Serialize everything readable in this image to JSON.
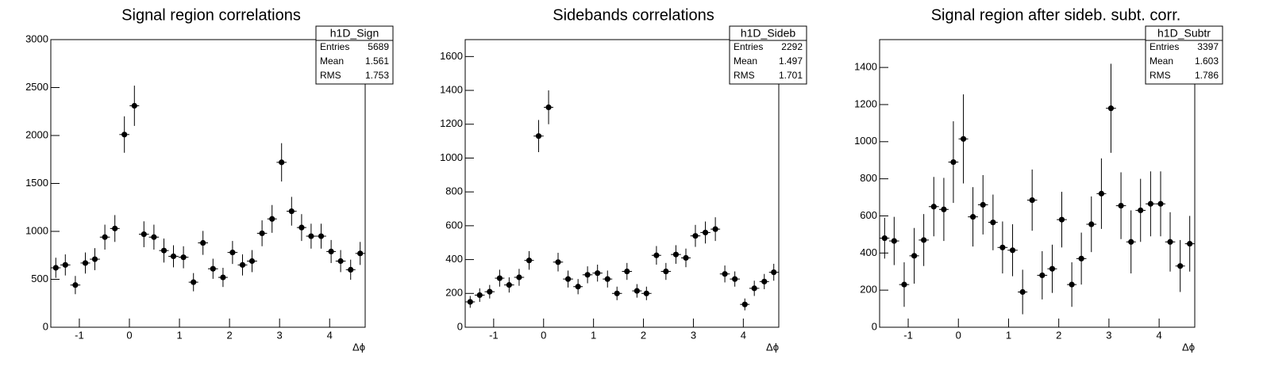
{
  "chart_data": [
    {
      "type": "errorbar",
      "title": "Signal region correlations",
      "x_label": "Δϕ",
      "x": [
        -1.47,
        -1.28,
        -1.08,
        -0.88,
        -0.69,
        -0.49,
        -0.29,
        -0.1,
        0.1,
        0.29,
        0.49,
        0.69,
        0.88,
        1.08,
        1.28,
        1.47,
        1.67,
        1.87,
        2.06,
        2.26,
        2.45,
        2.65,
        2.85,
        3.04,
        3.24,
        3.44,
        3.63,
        3.83,
        4.03,
        4.22,
        4.42,
        4.61
      ],
      "values": [
        620,
        650,
        440,
        670,
        710,
        940,
        1030,
        2010,
        2310,
        970,
        940,
        800,
        740,
        730,
        470,
        880,
        610,
        520,
        780,
        650,
        690,
        980,
        1130,
        1720,
        1210,
        1040,
        950,
        950,
        790,
        690,
        600,
        770
      ],
      "errors": [
        105,
        110,
        95,
        110,
        115,
        130,
        140,
        190,
        210,
        135,
        130,
        125,
        115,
        115,
        95,
        125,
        105,
        100,
        120,
        110,
        115,
        135,
        145,
        200,
        150,
        140,
        130,
        130,
        120,
        115,
        105,
        120
      ],
      "color": "#000000",
      "xlim": [
        -1.57,
        4.71
      ],
      "ylim": [
        0,
        3000
      ],
      "xticks": [
        -1,
        0,
        1,
        2,
        3,
        4
      ],
      "yticks": [
        0,
        500,
        1000,
        1500,
        2000,
        2500,
        3000
      ],
      "stats": {
        "title": "h1D_Sign",
        "rows": [
          {
            "label": "Entries",
            "value": 5689
          },
          {
            "label": "Mean",
            "value": 1.561
          },
          {
            "label": "RMS",
            "value": 1.753
          }
        ]
      }
    },
    {
      "type": "errorbar",
      "title": "Sidebands correlations",
      "x_label": "Δϕ",
      "x": [
        -1.47,
        -1.28,
        -1.08,
        -0.88,
        -0.69,
        -0.49,
        -0.29,
        -0.1,
        0.1,
        0.29,
        0.49,
        0.69,
        0.88,
        1.08,
        1.28,
        1.47,
        1.67,
        1.87,
        2.06,
        2.26,
        2.45,
        2.65,
        2.85,
        3.04,
        3.24,
        3.44,
        3.63,
        3.83,
        4.03,
        4.22,
        4.42,
        4.61
      ],
      "values": [
        150,
        190,
        210,
        290,
        250,
        295,
        395,
        1130,
        1300,
        385,
        285,
        240,
        310,
        320,
        285,
        200,
        330,
        215,
        200,
        425,
        330,
        430,
        410,
        540,
        560,
        580,
        315,
        285,
        135,
        230,
        270,
        325
      ],
      "errors": [
        35,
        40,
        40,
        50,
        45,
        50,
        55,
        95,
        100,
        55,
        50,
        45,
        50,
        50,
        50,
        40,
        50,
        40,
        40,
        55,
        50,
        55,
        55,
        65,
        65,
        70,
        50,
        45,
        35,
        45,
        45,
        50
      ],
      "color": "#000000",
      "xlim": [
        -1.57,
        4.71
      ],
      "ylim": [
        0,
        1700
      ],
      "xticks": [
        -1,
        0,
        1,
        2,
        3,
        4
      ],
      "yticks": [
        0,
        200,
        400,
        600,
        800,
        1000,
        1200,
        1400,
        1600
      ],
      "stats": {
        "title": "h1D_Sideb",
        "rows": [
          {
            "label": "Entries",
            "value": 2292
          },
          {
            "label": "Mean",
            "value": 1.497
          },
          {
            "label": "RMS",
            "value": 1.701
          }
        ]
      }
    },
    {
      "type": "errorbar",
      "title": "Signal region after sideb. subt. corr.",
      "x_label": "Δϕ",
      "x": [
        -1.47,
        -1.28,
        -1.08,
        -0.88,
        -0.69,
        -0.49,
        -0.29,
        -0.1,
        0.1,
        0.29,
        0.49,
        0.69,
        0.88,
        1.08,
        1.28,
        1.47,
        1.67,
        1.87,
        2.06,
        2.26,
        2.45,
        2.65,
        2.85,
        3.04,
        3.24,
        3.44,
        3.63,
        3.83,
        4.03,
        4.22,
        4.42,
        4.61
      ],
      "values": [
        480,
        465,
        230,
        385,
        470,
        650,
        635,
        890,
        1015,
        595,
        660,
        565,
        430,
        415,
        190,
        685,
        280,
        315,
        580,
        230,
        370,
        555,
        720,
        1180,
        655,
        460,
        630,
        665,
        665,
        460,
        330,
        450
      ],
      "errors": [
        110,
        130,
        120,
        150,
        140,
        160,
        170,
        220,
        240,
        160,
        160,
        150,
        140,
        140,
        120,
        165,
        130,
        130,
        150,
        120,
        140,
        150,
        190,
        240,
        180,
        170,
        170,
        175,
        175,
        160,
        140,
        150
      ],
      "color": "#000000",
      "xlim": [
        -1.57,
        4.71
      ],
      "ylim": [
        0,
        1550
      ],
      "xticks": [
        -1,
        0,
        1,
        2,
        3,
        4
      ],
      "yticks": [
        0,
        200,
        400,
        600,
        800,
        1000,
        1200,
        1400
      ],
      "stats": {
        "title": "h1D_Subtr",
        "rows": [
          {
            "label": "Entries",
            "value": 3397
          },
          {
            "label": "Mean",
            "value": 1.603
          },
          {
            "label": "RMS",
            "value": 1.786
          }
        ]
      }
    }
  ]
}
